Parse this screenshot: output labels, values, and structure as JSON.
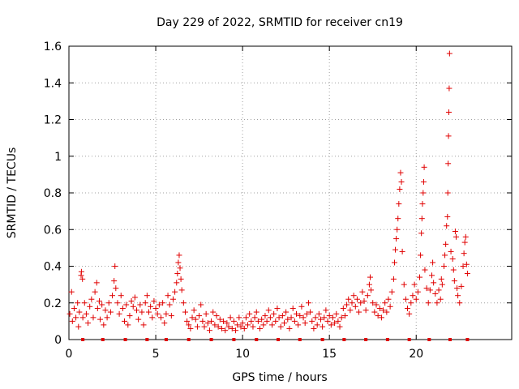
{
  "chart_data": {
    "type": "scatter",
    "title": "Day 229 of 2022, SRMTID for receiver cn19",
    "xlabel": "GPS time / hours",
    "ylabel": "SRMTID / TECUs",
    "xlim": [
      0,
      25.5
    ],
    "ylim": [
      0,
      1.6
    ],
    "xticks": [
      0,
      5,
      10,
      15,
      20
    ],
    "xtick_labels": [
      "0",
      "5",
      "10",
      "15",
      "20"
    ],
    "yticks": [
      0,
      0.2,
      0.4,
      0.6,
      0.8,
      1,
      1.2,
      1.4,
      1.6
    ],
    "ytick_labels": [
      "0",
      "0.2",
      "0.4",
      "0.6",
      "0.8",
      "1",
      "1.2",
      "1.4",
      "1.6"
    ],
    "grid": true,
    "series": [
      {
        "name": "SRMTID",
        "marker": "+",
        "color": "#e00000",
        "points": [
          [
            0.05,
            0.14
          ],
          [
            0.15,
            0.26
          ],
          [
            0.2,
            0.1
          ],
          [
            0.3,
            0.17
          ],
          [
            0.4,
            0.12
          ],
          [
            0.5,
            0.2
          ],
          [
            0.55,
            0.07
          ],
          [
            0.6,
            0.15
          ],
          [
            0.7,
            0.35
          ],
          [
            0.72,
            0.37
          ],
          [
            0.78,
            0.33
          ],
          [
            0.8,
            0.12
          ],
          [
            0.9,
            0.2
          ],
          [
            1.0,
            0.14
          ],
          [
            1.1,
            0.09
          ],
          [
            1.2,
            0.18
          ],
          [
            1.3,
            0.22
          ],
          [
            1.4,
            0.12
          ],
          [
            1.5,
            0.26
          ],
          [
            1.6,
            0.31
          ],
          [
            1.65,
            0.17
          ],
          [
            1.75,
            0.21
          ],
          [
            1.8,
            0.11
          ],
          [
            1.9,
            0.19
          ],
          [
            2.0,
            0.08
          ],
          [
            2.1,
            0.16
          ],
          [
            2.2,
            0.12
          ],
          [
            2.3,
            0.2
          ],
          [
            2.4,
            0.15
          ],
          [
            2.5,
            0.24
          ],
          [
            2.6,
            0.32
          ],
          [
            2.65,
            0.4
          ],
          [
            2.7,
            0.28
          ],
          [
            2.8,
            0.2
          ],
          [
            2.9,
            0.14
          ],
          [
            3.0,
            0.24
          ],
          [
            3.1,
            0.17
          ],
          [
            3.2,
            0.1
          ],
          [
            3.3,
            0.19
          ],
          [
            3.4,
            0.08
          ],
          [
            3.5,
            0.13
          ],
          [
            3.6,
            0.21
          ],
          [
            3.7,
            0.18
          ],
          [
            3.8,
            0.23
          ],
          [
            3.9,
            0.16
          ],
          [
            4.0,
            0.11
          ],
          [
            4.1,
            0.19
          ],
          [
            4.2,
            0.15
          ],
          [
            4.3,
            0.08
          ],
          [
            4.4,
            0.2
          ],
          [
            4.5,
            0.24
          ],
          [
            4.6,
            0.15
          ],
          [
            4.7,
            0.18
          ],
          [
            4.8,
            0.12
          ],
          [
            4.9,
            0.21
          ],
          [
            5.0,
            0.17
          ],
          [
            5.1,
            0.14
          ],
          [
            5.2,
            0.19
          ],
          [
            5.3,
            0.12
          ],
          [
            5.4,
            0.2
          ],
          [
            5.5,
            0.09
          ],
          [
            5.6,
            0.14
          ],
          [
            5.7,
            0.24
          ],
          [
            5.8,
            0.19
          ],
          [
            5.9,
            0.13
          ],
          [
            6.0,
            0.22
          ],
          [
            6.1,
            0.26
          ],
          [
            6.2,
            0.31
          ],
          [
            6.25,
            0.36
          ],
          [
            6.3,
            0.42
          ],
          [
            6.35,
            0.46
          ],
          [
            6.4,
            0.39
          ],
          [
            6.45,
            0.33
          ],
          [
            6.5,
            0.27
          ],
          [
            6.6,
            0.2
          ],
          [
            6.7,
            0.15
          ],
          [
            6.8,
            0.1
          ],
          [
            6.9,
            0.08
          ],
          [
            7.0,
            0.06
          ],
          [
            7.1,
            0.12
          ],
          [
            7.2,
            0.16
          ],
          [
            7.3,
            0.11
          ],
          [
            7.4,
            0.07
          ],
          [
            7.5,
            0.13
          ],
          [
            7.6,
            0.19
          ],
          [
            7.7,
            0.1
          ],
          [
            7.8,
            0.07
          ],
          [
            7.9,
            0.14
          ],
          [
            8.0,
            0.09
          ],
          [
            8.1,
            0.05
          ],
          [
            8.2,
            0.1
          ],
          [
            8.3,
            0.15
          ],
          [
            8.4,
            0.08
          ],
          [
            8.5,
            0.13
          ],
          [
            8.6,
            0.07
          ],
          [
            8.7,
            0.11
          ],
          [
            8.8,
            0.06
          ],
          [
            8.9,
            0.1
          ],
          [
            9.0,
            0.05
          ],
          [
            9.1,
            0.09
          ],
          [
            9.2,
            0.07
          ],
          [
            9.3,
            0.12
          ],
          [
            9.4,
            0.06
          ],
          [
            9.5,
            0.1
          ],
          [
            9.6,
            0.05
          ],
          [
            9.7,
            0.08
          ],
          [
            9.8,
            0.12
          ],
          [
            9.9,
            0.07
          ],
          [
            10.0,
            0.09
          ],
          [
            10.1,
            0.06
          ],
          [
            10.2,
            0.12
          ],
          [
            10.3,
            0.08
          ],
          [
            10.4,
            0.14
          ],
          [
            10.5,
            0.1
          ],
          [
            10.6,
            0.07
          ],
          [
            10.7,
            0.12
          ],
          [
            10.8,
            0.15
          ],
          [
            10.9,
            0.1
          ],
          [
            11.0,
            0.06
          ],
          [
            11.1,
            0.11
          ],
          [
            11.2,
            0.08
          ],
          [
            11.3,
            0.13
          ],
          [
            11.4,
            0.1
          ],
          [
            11.5,
            0.16
          ],
          [
            11.6,
            0.12
          ],
          [
            11.7,
            0.08
          ],
          [
            11.8,
            0.14
          ],
          [
            11.9,
            0.1
          ],
          [
            12.0,
            0.17
          ],
          [
            12.1,
            0.12
          ],
          [
            12.2,
            0.07
          ],
          [
            12.3,
            0.13
          ],
          [
            12.4,
            0.09
          ],
          [
            12.5,
            0.15
          ],
          [
            12.6,
            0.11
          ],
          [
            12.7,
            0.06
          ],
          [
            12.8,
            0.12
          ],
          [
            12.9,
            0.17
          ],
          [
            13.0,
            0.1
          ],
          [
            13.1,
            0.14
          ],
          [
            13.2,
            0.08
          ],
          [
            13.3,
            0.13
          ],
          [
            13.4,
            0.18
          ],
          [
            13.5,
            0.12
          ],
          [
            13.6,
            0.09
          ],
          [
            13.7,
            0.14
          ],
          [
            13.8,
            0.2
          ],
          [
            13.9,
            0.15
          ],
          [
            14.0,
            0.1
          ],
          [
            14.1,
            0.06
          ],
          [
            14.2,
            0.12
          ],
          [
            14.3,
            0.08
          ],
          [
            14.4,
            0.14
          ],
          [
            14.5,
            0.11
          ],
          [
            14.6,
            0.07
          ],
          [
            14.7,
            0.12
          ],
          [
            14.8,
            0.16
          ],
          [
            14.9,
            0.1
          ],
          [
            15.0,
            0.13
          ],
          [
            15.1,
            0.08
          ],
          [
            15.2,
            0.12
          ],
          [
            15.3,
            0.09
          ],
          [
            15.4,
            0.14
          ],
          [
            15.5,
            0.1
          ],
          [
            15.6,
            0.07
          ],
          [
            15.7,
            0.12
          ],
          [
            15.8,
            0.17
          ],
          [
            15.9,
            0.13
          ],
          [
            16.0,
            0.19
          ],
          [
            16.1,
            0.22
          ],
          [
            16.2,
            0.16
          ],
          [
            16.3,
            0.2
          ],
          [
            16.4,
            0.24
          ],
          [
            16.5,
            0.18
          ],
          [
            16.6,
            0.22
          ],
          [
            16.7,
            0.15
          ],
          [
            16.8,
            0.2
          ],
          [
            16.9,
            0.26
          ],
          [
            17.0,
            0.21
          ],
          [
            17.1,
            0.16
          ],
          [
            17.2,
            0.24
          ],
          [
            17.3,
            0.3
          ],
          [
            17.35,
            0.34
          ],
          [
            17.4,
            0.27
          ],
          [
            17.5,
            0.2
          ],
          [
            17.6,
            0.15
          ],
          [
            17.7,
            0.19
          ],
          [
            17.8,
            0.13
          ],
          [
            17.9,
            0.17
          ],
          [
            18.0,
            0.12
          ],
          [
            18.1,
            0.16
          ],
          [
            18.2,
            0.2
          ],
          [
            18.3,
            0.15
          ],
          [
            18.4,
            0.22
          ],
          [
            18.5,
            0.18
          ],
          [
            18.6,
            0.26
          ],
          [
            18.7,
            0.33
          ],
          [
            18.75,
            0.42
          ],
          [
            18.8,
            0.49
          ],
          [
            18.85,
            0.55
          ],
          [
            18.9,
            0.6
          ],
          [
            18.95,
            0.66
          ],
          [
            19.0,
            0.74
          ],
          [
            19.05,
            0.82
          ],
          [
            19.1,
            0.91
          ],
          [
            19.15,
            0.86
          ],
          [
            19.2,
            0.48
          ],
          [
            19.3,
            0.3
          ],
          [
            19.4,
            0.22
          ],
          [
            19.5,
            0.17
          ],
          [
            19.6,
            0.14
          ],
          [
            19.7,
            0.2
          ],
          [
            19.8,
            0.24
          ],
          [
            19.9,
            0.3
          ],
          [
            20.0,
            0.22
          ],
          [
            20.1,
            0.26
          ],
          [
            20.2,
            0.34
          ],
          [
            20.25,
            0.46
          ],
          [
            20.3,
            0.58
          ],
          [
            20.33,
            0.66
          ],
          [
            20.36,
            0.74
          ],
          [
            20.4,
            0.8
          ],
          [
            20.43,
            0.86
          ],
          [
            20.46,
            0.94
          ],
          [
            20.5,
            0.38
          ],
          [
            20.6,
            0.28
          ],
          [
            20.7,
            0.2
          ],
          [
            20.8,
            0.27
          ],
          [
            20.9,
            0.35
          ],
          [
            20.95,
            0.42
          ],
          [
            21.0,
            0.31
          ],
          [
            21.1,
            0.25
          ],
          [
            21.2,
            0.2
          ],
          [
            21.3,
            0.27
          ],
          [
            21.4,
            0.22
          ],
          [
            21.45,
            0.33
          ],
          [
            21.5,
            0.3
          ],
          [
            21.6,
            0.4
          ],
          [
            21.65,
            0.46
          ],
          [
            21.7,
            0.52
          ],
          [
            21.75,
            0.62
          ],
          [
            21.8,
            0.67
          ],
          [
            21.82,
            0.8
          ],
          [
            21.84,
            0.96
          ],
          [
            21.86,
            1.11
          ],
          [
            21.88,
            1.24
          ],
          [
            21.9,
            1.37
          ],
          [
            21.92,
            1.56
          ],
          [
            22.0,
            0.48
          ],
          [
            22.1,
            0.44
          ],
          [
            22.15,
            0.38
          ],
          [
            22.2,
            0.32
          ],
          [
            22.25,
            0.59
          ],
          [
            22.3,
            0.56
          ],
          [
            22.35,
            0.28
          ],
          [
            22.4,
            0.24
          ],
          [
            22.5,
            0.2
          ],
          [
            22.6,
            0.29
          ],
          [
            22.7,
            0.4
          ],
          [
            22.75,
            0.47
          ],
          [
            22.8,
            0.53
          ],
          [
            22.85,
            0.56
          ],
          [
            22.9,
            0.41
          ],
          [
            22.95,
            0.36
          ]
        ]
      }
    ],
    "gap_markers": {
      "y": 0,
      "x": [
        0.8,
        1.95,
        3.25,
        4.5,
        5.6,
        6.9,
        8.2,
        9.5,
        10.8,
        12.05,
        13.3,
        14.6,
        15.85,
        17.1,
        18.35,
        19.6,
        20.75,
        21.95,
        22.95
      ]
    }
  }
}
